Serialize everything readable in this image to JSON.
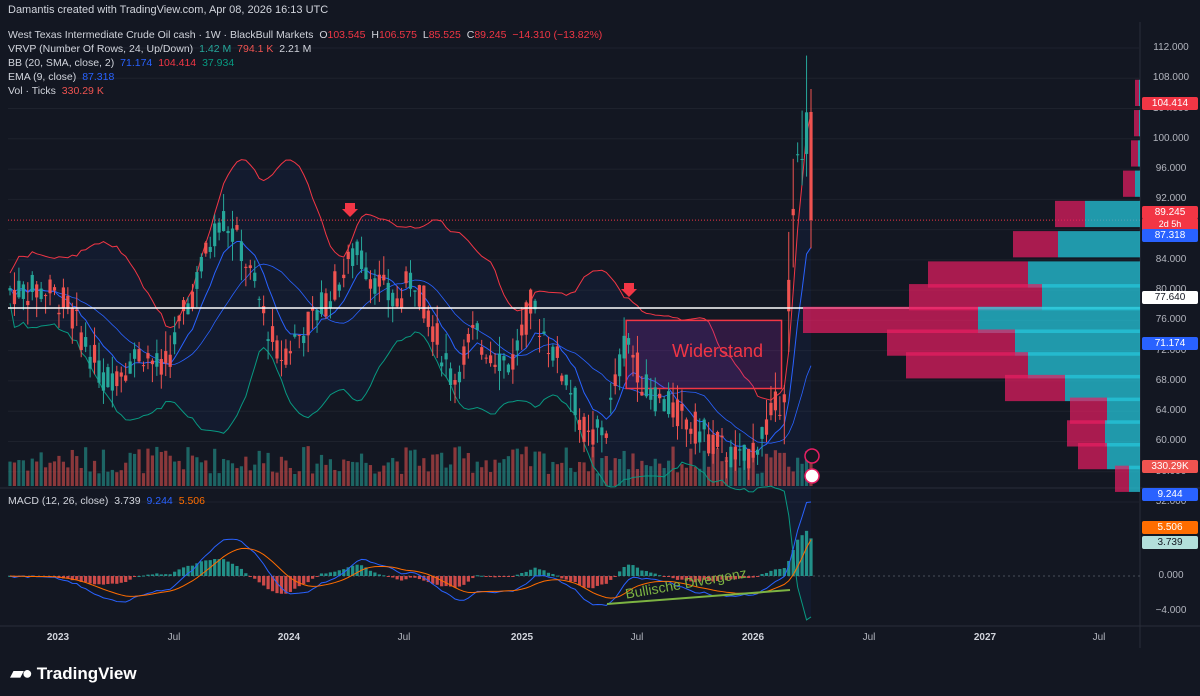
{
  "header": {
    "credit": "Damantis created with TradingView.com, Apr 08, 2026 16:13 UTC"
  },
  "legend": {
    "symbol": "West Texas Intermediate Crude Oil cash · 1W · BlackBull Markets",
    "o_label": "O",
    "o_val": "103.545",
    "h_label": "H",
    "h_val": "106.575",
    "l_label": "L",
    "l_val": "85.525",
    "c_label": "C",
    "c_val": "89.245",
    "change": "−14.310 (−13.82%)",
    "vrvp_label": "VRVP (Number Of Rows, 24, Up/Down)",
    "vrvp_up": "1.42 M",
    "vrvp_down": "794.1 K",
    "vrvp_total": "2.21 M",
    "bb_label": "BB (20, SMA, close, 2)",
    "bb_basis": "71.174",
    "bb_upper": "104.414",
    "bb_lower": "37.934",
    "ema_label": "EMA (9, close)",
    "ema_val": "87.318",
    "vol_label": "Vol · Ticks",
    "vol_val": "330.29 K",
    "macd_label": "MACD (12, 26, close)",
    "macd_hist": "3.739",
    "macd_line": "9.244",
    "macd_signal": "5.506"
  },
  "price_axis": {
    "ticks": [
      "112.000",
      "108.000",
      "104.000",
      "100.000",
      "96.000",
      "92.000",
      "88.000",
      "84.000",
      "80.000",
      "76.000",
      "72.000",
      "68.000",
      "64.000",
      "60.000",
      "56.000",
      "52.000"
    ],
    "tick_values": [
      112,
      108,
      104,
      100,
      96,
      92,
      88,
      84,
      80,
      76,
      72,
      68,
      64,
      60,
      56,
      52
    ]
  },
  "price_tags": {
    "bb_upper": "104.414",
    "close": "89.245",
    "countdown": "2d 5h",
    "ema": "87.318",
    "hline": "77.640",
    "bb_basis": "71.174",
    "volume": "330.29K"
  },
  "macd_axis": {
    "ticks": [
      "0.000",
      "−4.000"
    ],
    "tag_macd": "9.244",
    "tag_signal": "5.506",
    "tag_hist": "3.739"
  },
  "time_axis": {
    "labels": [
      {
        "text": "2023",
        "year": true
      },
      {
        "text": "Jul",
        "year": false
      },
      {
        "text": "2024",
        "year": true
      },
      {
        "text": "Jul",
        "year": false
      },
      {
        "text": "2025",
        "year": true
      },
      {
        "text": "Jul",
        "year": false
      },
      {
        "text": "2026",
        "year": true
      },
      {
        "text": "Jul",
        "year": false
      },
      {
        "text": "2027",
        "year": true
      },
      {
        "text": "Jul",
        "year": false
      }
    ]
  },
  "annotations": {
    "resistance": "Widerstand",
    "divergence": "Bullische Divergenz"
  },
  "footer": {
    "brand": "TradingView"
  },
  "colors": {
    "background": "#131722",
    "up": "#26a69a",
    "down": "#ef5350",
    "bb": "#f23645",
    "basis": "#2962ff",
    "lower": "#089981",
    "ema": "#2962ff",
    "hline": "#ffffff",
    "vp_up": "#26c6da",
    "vp_down": "#e91e63",
    "macd_line": "#2962ff",
    "signal_line": "#ff6d00"
  },
  "chart_data": {
    "type": "candlestick",
    "title": "West Texas Intermediate Crude Oil cash · 1W · BlackBull Markets",
    "ylim": [
      50,
      114
    ],
    "x_range": [
      "2022-12",
      "2027-09"
    ],
    "horizontal_line": 77.64,
    "resistance_box": {
      "from": "2025-06",
      "to": "2026-02",
      "low": 67.0,
      "high": 76.0
    },
    "price_path": [
      {
        "date": "2022-12",
        "close": 80
      },
      {
        "date": "2023-01",
        "close": 78
      },
      {
        "date": "2023-03",
        "close": 68
      },
      {
        "date": "2023-05",
        "close": 72
      },
      {
        "date": "2023-06",
        "close": 69
      },
      {
        "date": "2023-09",
        "close": 90
      },
      {
        "date": "2023-10",
        "close": 86
      },
      {
        "date": "2023-12",
        "close": 71
      },
      {
        "date": "2024-02",
        "close": 77
      },
      {
        "date": "2024-04",
        "close": 85
      },
      {
        "date": "2024-06",
        "close": 78
      },
      {
        "date": "2024-07",
        "close": 82
      },
      {
        "date": "2024-09",
        "close": 68
      },
      {
        "date": "2024-10",
        "close": 74
      },
      {
        "date": "2024-12",
        "close": 70
      },
      {
        "date": "2025-01",
        "close": 78
      },
      {
        "date": "2025-03",
        "close": 68
      },
      {
        "date": "2025-04",
        "close": 60
      },
      {
        "date": "2025-05",
        "close": 62
      },
      {
        "date": "2025-06",
        "close": 74
      },
      {
        "date": "2025-07",
        "close": 67
      },
      {
        "date": "2025-09",
        "close": 63
      },
      {
        "date": "2025-11",
        "close": 59
      },
      {
        "date": "2025-12",
        "close": 57
      },
      {
        "date": "2026-01",
        "close": 61
      },
      {
        "date": "2026-02",
        "close": 66
      },
      {
        "date": "2026-03",
        "close": 98
      },
      {
        "date": "2026-04",
        "close": 89.245
      }
    ],
    "volume_profile": [
      {
        "price": 106,
        "up": 1.0,
        "down": 4.0
      },
      {
        "price": 102,
        "up": 1.0,
        "down": 5.0
      },
      {
        "price": 98,
        "up": 2.0,
        "down": 7.0
      },
      {
        "price": 94,
        "up": 5.0,
        "down": 12.0
      },
      {
        "price": 90,
        "up": 55.0,
        "down": 30.0
      },
      {
        "price": 86,
        "up": 82.0,
        "down": 45.0
      },
      {
        "price": 82,
        "up": 112.0,
        "down": 100.0
      },
      {
        "price": 79,
        "up": 98.0,
        "down": 133.0
      },
      {
        "price": 76,
        "up": 162.0,
        "down": 175.0
      },
      {
        "price": 73,
        "up": 125.0,
        "down": 128.0
      },
      {
        "price": 70,
        "up": 112.0,
        "down": 122.0
      },
      {
        "price": 67,
        "up": 75.0,
        "down": 60.0
      },
      {
        "price": 64,
        "up": 33.0,
        "down": 37.0
      },
      {
        "price": 61,
        "up": 35.0,
        "down": 38.0
      },
      {
        "price": 58,
        "up": 33.0,
        "down": 29.0
      },
      {
        "price": 55,
        "up": 11.0,
        "down": 14.0
      }
    ],
    "macd": {
      "macd": 9.244,
      "signal": 5.506,
      "histogram": 3.739,
      "ylim": [
        -7,
        11
      ]
    }
  }
}
